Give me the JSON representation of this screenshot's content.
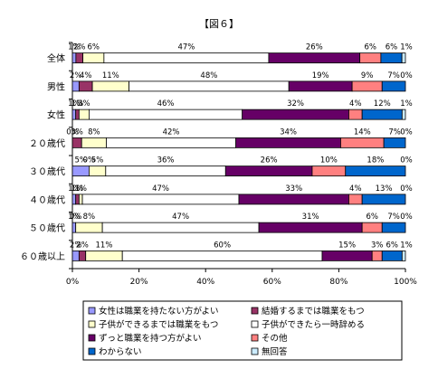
{
  "chart_data": {
    "type": "bar",
    "orientation": "horizontal",
    "stacked": "percent",
    "title": "【図６】",
    "categories": [
      "全体",
      "男性",
      "女性",
      "２０歳代",
      "３０歳代",
      "４０歳代",
      "５０歳代",
      "６０歳以上"
    ],
    "xlim": [
      0,
      100
    ],
    "xticks": [
      "0%",
      "20%",
      "40%",
      "60%",
      "80%",
      "100%"
    ],
    "grid": false,
    "legend_position": "bottom",
    "series": [
      {
        "name": "女性は職業を持たない方がよい",
        "color": "#9999ff",
        "values": [
          1,
          2,
          1,
          0,
          5,
          1,
          1,
          2
        ],
        "labels": [
          "1%",
          "2%",
          "1%",
          "0%",
          "5%",
          "1%",
          "1%",
          "2%"
        ]
      },
      {
        "name": "結婚するまでは職業をもつ",
        "color": "#993366",
        "values": [
          2,
          4,
          1,
          3,
          0,
          1,
          0,
          2
        ],
        "labels": [
          "2%",
          "4%",
          "1%",
          "3%",
          "0%",
          "1%",
          "0%",
          "2%"
        ]
      },
      {
        "name": "子供ができるまでは職業をもつ",
        "color": "#ffffcc",
        "values": [
          6,
          11,
          3,
          8,
          5,
          1,
          8,
          11
        ],
        "labels": [
          "6%",
          "11%",
          "3%",
          "8%",
          "5%",
          "1%",
          "8%",
          "11%"
        ]
      },
      {
        "name": "子供ができたら一時辞める",
        "color": "#ffffff",
        "values": [
          47,
          48,
          46,
          42,
          36,
          47,
          47,
          60
        ],
        "labels": [
          "47%",
          "48%",
          "46%",
          "42%",
          "36%",
          "47%",
          "47%",
          "60%"
        ]
      },
      {
        "name": "ずっと職業を持つ方がよい",
        "color": "#660066",
        "values": [
          26,
          19,
          32,
          34,
          26,
          33,
          31,
          15
        ],
        "labels": [
          "26%",
          "19%",
          "32%",
          "34%",
          "26%",
          "33%",
          "31%",
          "15%"
        ]
      },
      {
        "name": "その他",
        "color": "#ff8080",
        "values": [
          6,
          9,
          4,
          14,
          10,
          4,
          6,
          3
        ],
        "labels": [
          "6%",
          "9%",
          "4%",
          "14%",
          "10%",
          "4%",
          "6%",
          "3%"
        ]
      },
      {
        "name": "わからない",
        "color": "#0066cc",
        "values": [
          6,
          7,
          12,
          7,
          18,
          13,
          7,
          6
        ],
        "labels": [
          "6%",
          "7%",
          "12%",
          "7%",
          "18%",
          "13%",
          "7%",
          "6%"
        ]
      },
      {
        "name": "無回答",
        "color": "#ccecff",
        "values": [
          1,
          0,
          1,
          0,
          0,
          0,
          0,
          1
        ],
        "labels": [
          "1%",
          "0%",
          "1%",
          "0%",
          "0%",
          "0%",
          "0%",
          "1%"
        ]
      }
    ]
  }
}
